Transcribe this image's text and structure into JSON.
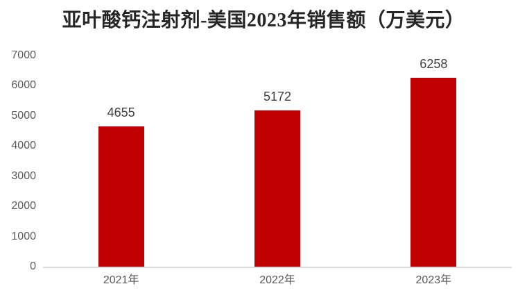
{
  "chart_data": {
    "type": "bar",
    "title": "亚叶酸钙注射剂-美国2023年销售额（万美元）",
    "categories": [
      "2021年",
      "2022年",
      "2023年"
    ],
    "values": [
      4655,
      5172,
      6258
    ],
    "data_labels": [
      "4655",
      "5172",
      "6258"
    ],
    "xlabel": "",
    "ylabel": "",
    "ylim": [
      0,
      7000
    ],
    "yticks": [
      0,
      1000,
      2000,
      3000,
      4000,
      5000,
      6000,
      7000
    ],
    "grid": false,
    "legend": false,
    "colors": {
      "bar": "#c00000",
      "title_text": "#262626",
      "axis_tick_text": "#595959",
      "data_label_text": "#404040",
      "axis_line": "#d9d9d9",
      "background": "#ffffff"
    }
  }
}
